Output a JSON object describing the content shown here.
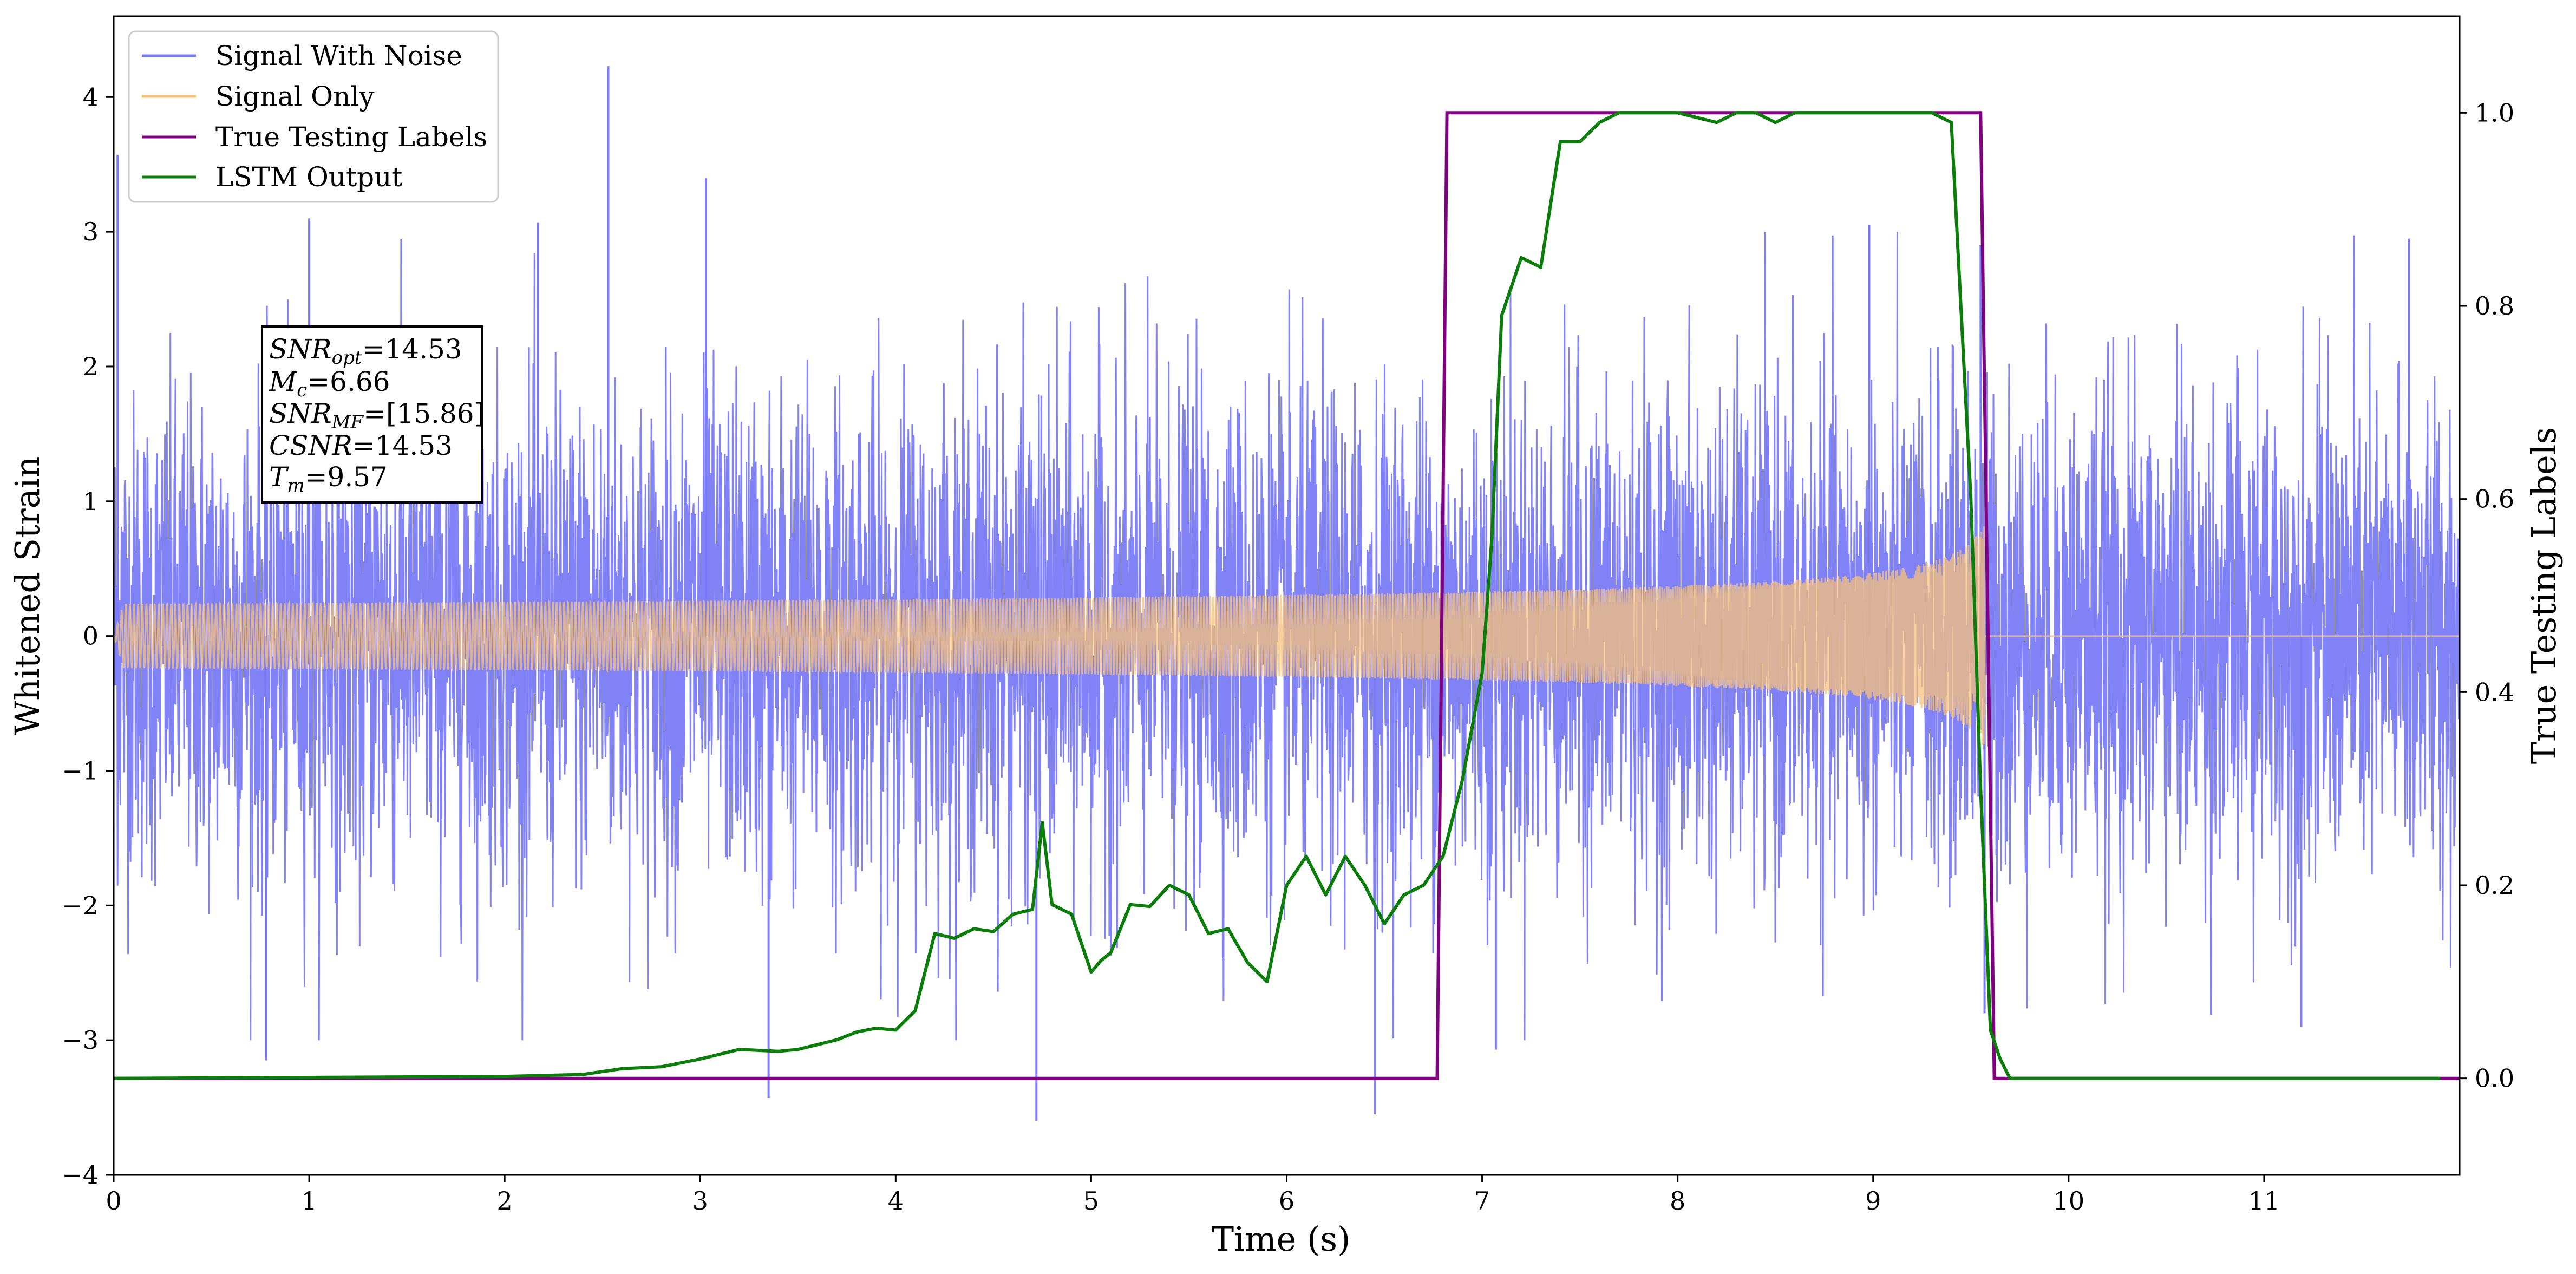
{
  "chart_data": {
    "type": "line",
    "xlabel": "Time (s)",
    "ylabel": "Whitened Strain",
    "ylabel_right": "True Testing Labels",
    "xlim": [
      0,
      12
    ],
    "ylim": [
      -4,
      4.6
    ],
    "ylim_right": [
      -0.1,
      1.1
    ],
    "x_ticks": [
      0,
      1,
      2,
      3,
      4,
      5,
      6,
      7,
      8,
      9,
      10,
      11
    ],
    "y_ticks": [
      -4,
      -3,
      -2,
      -1,
      0,
      1,
      2,
      3,
      4
    ],
    "y_ticks_right": [
      0.0,
      0.2,
      0.4,
      0.6,
      0.8,
      1.0
    ],
    "legend_position": "upper-left",
    "grid": false,
    "series": [
      {
        "name": "Signal With Noise",
        "axis": "left",
        "color": "#7b7bf7",
        "description_shape": "noisy strain oscillating roughly between -2.5 and 2.5 over 0-12 s",
        "envelope_std": 0.9,
        "spikes": [
          [
            0.02,
            3.57
          ],
          [
            2.53,
            4.23
          ],
          [
            1.0,
            3.1
          ],
          [
            2.17,
            3.07
          ],
          [
            3.03,
            3.4
          ],
          [
            3.35,
            -3.43
          ],
          [
            0.78,
            -3.15
          ],
          [
            4.72,
            -3.6
          ],
          [
            6.45,
            -3.55
          ],
          [
            7.07,
            -3.07
          ],
          [
            9.57,
            -2.8
          ],
          [
            11.19,
            -2.9
          ],
          [
            11.74,
            2.95
          ],
          [
            8.98,
            3.05
          ],
          [
            9.55,
            2.9
          ]
        ]
      },
      {
        "name": "Signal Only",
        "axis": "left",
        "color": "#f7c27b",
        "description_shape": "chirp from t=0 to 9.57 s with growing amplitude, zero afterwards",
        "chirp_end": 9.57,
        "chirp_peak_amplitude": 0.85
      },
      {
        "name": "True Testing Labels",
        "axis": "right",
        "color": "#800080",
        "x": [
          0,
          6.77,
          6.82,
          9.55,
          9.62,
          12
        ],
        "values": [
          0,
          0,
          1,
          1,
          0,
          0
        ]
      },
      {
        "name": "LSTM Output",
        "axis": "right",
        "color": "#0a7d0a",
        "x": [
          0.0,
          2.0,
          2.4,
          2.6,
          2.8,
          3.0,
          3.2,
          3.4,
          3.5,
          3.6,
          3.7,
          3.8,
          3.9,
          4.0,
          4.1,
          4.2,
          4.3,
          4.4,
          4.5,
          4.6,
          4.7,
          4.75,
          4.8,
          4.9,
          5.0,
          5.05,
          5.1,
          5.2,
          5.3,
          5.4,
          5.5,
          5.6,
          5.7,
          5.8,
          5.9,
          6.0,
          6.1,
          6.2,
          6.3,
          6.4,
          6.5,
          6.6,
          6.7,
          6.8,
          6.9,
          7.0,
          7.05,
          7.1,
          7.2,
          7.3,
          7.4,
          7.5,
          7.6,
          7.7,
          7.8,
          7.9,
          8.0,
          8.1,
          8.2,
          8.3,
          8.4,
          8.5,
          8.6,
          8.7,
          8.8,
          8.9,
          9.0,
          9.1,
          9.2,
          9.3,
          9.4,
          9.5,
          9.55,
          9.6,
          9.65,
          9.7,
          9.8,
          10.0,
          11.9
        ],
        "values": [
          0.0,
          0.002,
          0.004,
          0.01,
          0.012,
          0.02,
          0.03,
          0.028,
          0.03,
          0.035,
          0.04,
          0.048,
          0.052,
          0.05,
          0.07,
          0.15,
          0.145,
          0.155,
          0.152,
          0.17,
          0.175,
          0.265,
          0.18,
          0.17,
          0.11,
          0.122,
          0.13,
          0.18,
          0.178,
          0.2,
          0.19,
          0.15,
          0.155,
          0.12,
          0.1,
          0.2,
          0.23,
          0.19,
          0.23,
          0.2,
          0.16,
          0.19,
          0.2,
          0.23,
          0.31,
          0.42,
          0.56,
          0.79,
          0.85,
          0.84,
          0.97,
          0.97,
          0.99,
          1.0,
          1.0,
          1.0,
          1.0,
          0.995,
          0.99,
          1.0,
          1.0,
          0.99,
          1.0,
          1.0,
          1.0,
          1.0,
          1.0,
          1.0,
          1.0,
          1.0,
          0.99,
          0.6,
          0.3,
          0.05,
          0.02,
          0.0,
          0.0,
          0.0,
          0.0
        ]
      }
    ],
    "annotation_lines": [
      "SNR",
      "opt",
      "=14.53",
      "M",
      "c",
      "=6.66",
      "SNR",
      "MF",
      "=[15.86]",
      "CSNR",
      "=14.53",
      "T",
      "m",
      "=9.57"
    ]
  }
}
